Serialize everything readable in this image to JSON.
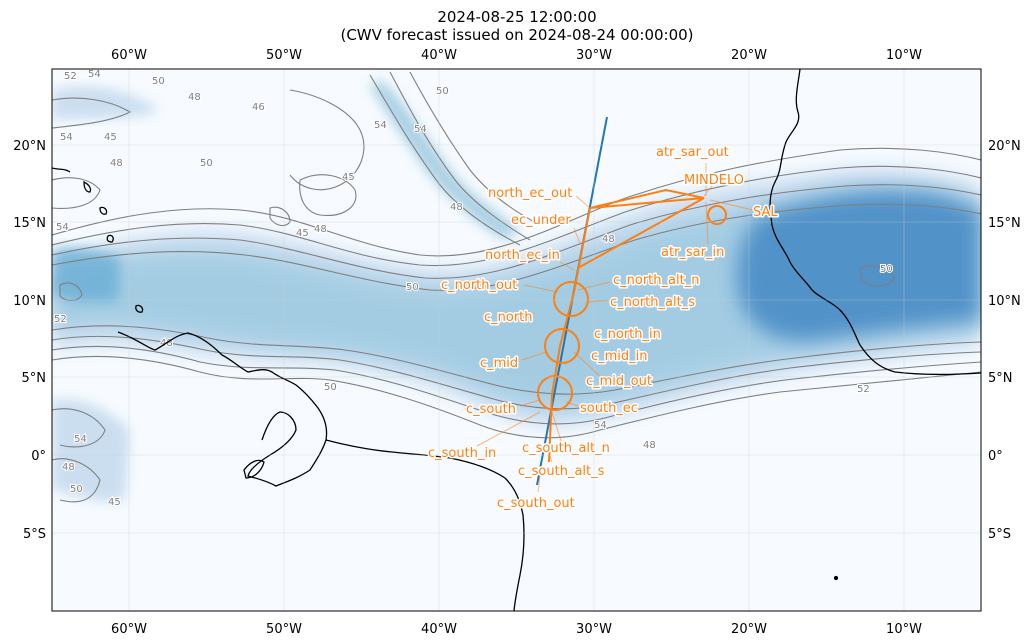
{
  "title": {
    "line1": "2024-08-25 12:00:00",
    "line2": "(CWV forecast issued on 2024-08-24 00:00:00)"
  },
  "axes": {
    "lon_ticks": [
      "60°W",
      "50°W",
      "40°W",
      "30°W",
      "20°W",
      "10°W"
    ],
    "lat_ticks": [
      "20°N",
      "15°N",
      "10°N",
      "5°N",
      "0°",
      "5°S"
    ]
  },
  "contour_labels": [
    "52",
    "54",
    "50",
    "48",
    "46",
    "45",
    "48",
    "50",
    "54",
    "54",
    "45",
    "48",
    "48",
    "50",
    "50",
    "54",
    "52",
    "48",
    "50",
    "54",
    "48",
    "45",
    "50",
    "54",
    "48",
    "45",
    "52",
    "50",
    "54",
    "48"
  ],
  "flight_labels": [
    {
      "text": "atr_sar_out"
    },
    {
      "text": "MINDELO"
    },
    {
      "text": "north_ec_out"
    },
    {
      "text": "SAL"
    },
    {
      "text": "ec_under"
    },
    {
      "text": "atr_sar_in"
    },
    {
      "text": "north_ec_in"
    },
    {
      "text": "c_north_alt_n"
    },
    {
      "text": "c_north_out"
    },
    {
      "text": "c_north_alt_s"
    },
    {
      "text": "c_north"
    },
    {
      "text": "c_north_in"
    },
    {
      "text": "c_mid_in"
    },
    {
      "text": "c_mid"
    },
    {
      "text": "c_mid_out"
    },
    {
      "text": "south_ec"
    },
    {
      "text": "c_south"
    },
    {
      "text": "c_south_alt_n"
    },
    {
      "text": "c_south_in"
    },
    {
      "text": "c_south_alt_s"
    },
    {
      "text": "c_south_out"
    }
  ],
  "colors": {
    "flight_track": "#ff7f0e",
    "satellite_track": "#1f77b4",
    "contour": "#7f7f7f",
    "coastline": "#000000",
    "cwv_low": "#f7fbff",
    "cwv_high": "#2f73b5"
  }
}
